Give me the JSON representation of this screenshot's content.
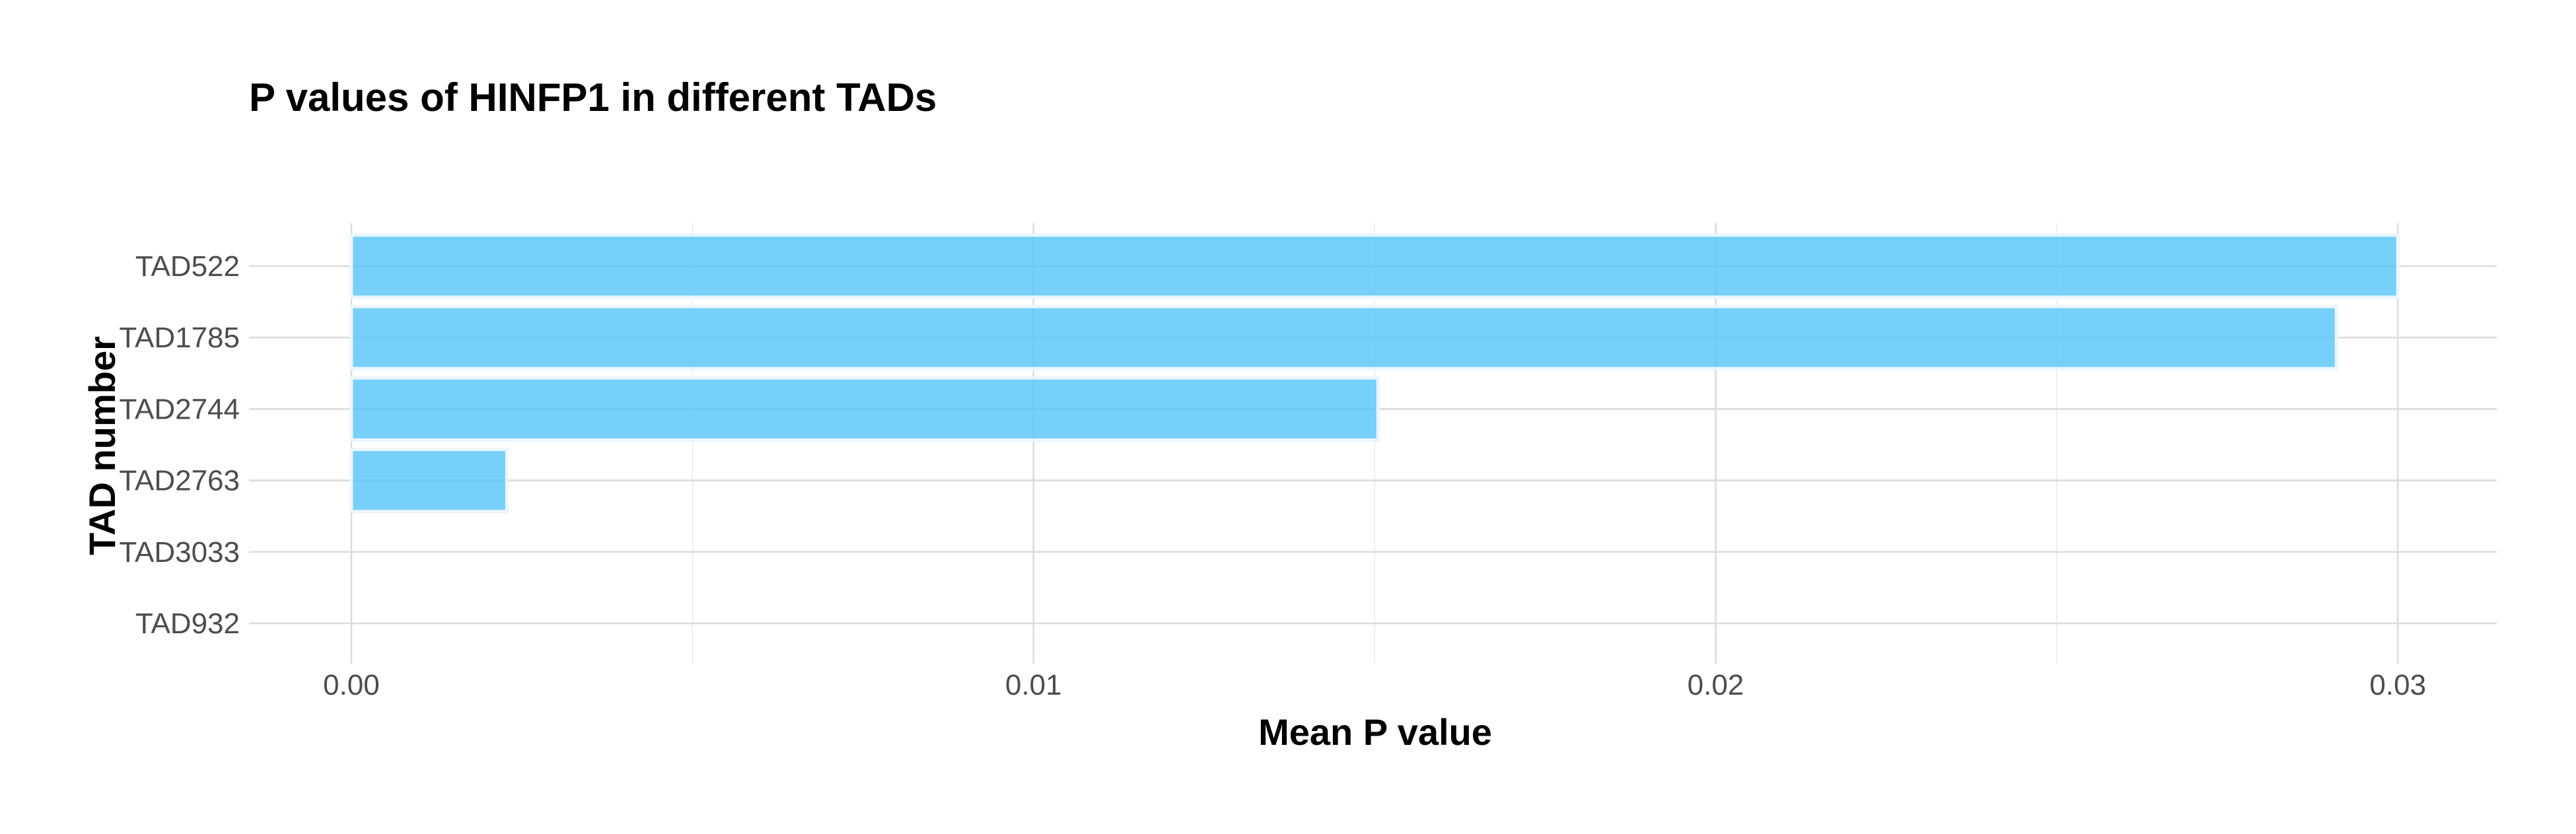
{
  "chart_data": {
    "type": "bar",
    "orientation": "horizontal",
    "title": "P values of HINFP1 in different TADs",
    "xlabel": "Mean P value",
    "ylabel": "TAD number",
    "categories": [
      "TAD522",
      "TAD1785",
      "TAD2744",
      "TAD2763",
      "TAD3033",
      "TAD932"
    ],
    "values": [
      0.03,
      0.0291,
      0.01505,
      0.00228,
      0.0,
      0.0
    ],
    "xlim": [
      -0.0015,
      0.03145
    ],
    "x_ticks": [
      0.0,
      0.01,
      0.02,
      0.03
    ],
    "x_tick_labels": [
      "0.00",
      "0.01",
      "0.02",
      "0.03"
    ],
    "x_minor_ticks": [
      0.005,
      0.015,
      0.025
    ],
    "grid": true,
    "legend": "none",
    "colors": {
      "bar_fill": "#4fc3f7",
      "bar_opacity": 0.78,
      "bar_outline": "#eaf6ff"
    }
  }
}
